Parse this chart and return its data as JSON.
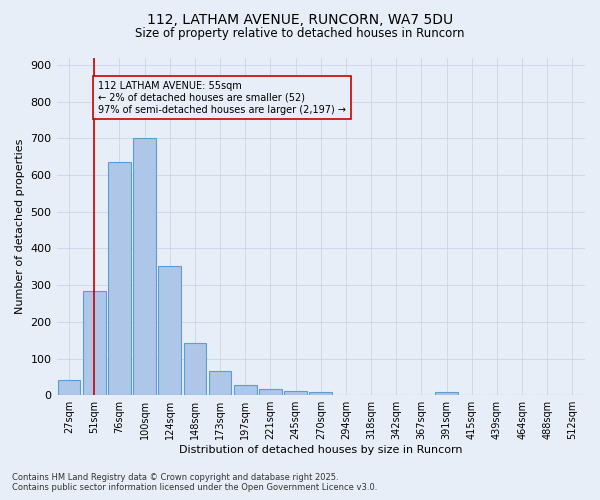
{
  "title": "112, LATHAM AVENUE, RUNCORN, WA7 5DU",
  "subtitle": "Size of property relative to detached houses in Runcorn",
  "xlabel": "Distribution of detached houses by size in Runcorn",
  "ylabel": "Number of detached properties",
  "footer_line1": "Contains HM Land Registry data © Crown copyright and database right 2025.",
  "footer_line2": "Contains public sector information licensed under the Open Government Licence v3.0.",
  "bar_labels": [
    "27sqm",
    "51sqm",
    "76sqm",
    "100sqm",
    "124sqm",
    "148sqm",
    "173sqm",
    "197sqm",
    "221sqm",
    "245sqm",
    "270sqm",
    "294sqm",
    "318sqm",
    "342sqm",
    "367sqm",
    "391sqm",
    "415sqm",
    "439sqm",
    "464sqm",
    "488sqm",
    "512sqm"
  ],
  "bar_values": [
    42,
    285,
    635,
    700,
    352,
    143,
    65,
    29,
    16,
    11,
    9,
    0,
    0,
    0,
    0,
    8,
    0,
    0,
    0,
    0,
    0
  ],
  "bar_color": "#aec6e8",
  "bar_edge_color": "#5a9fd4",
  "grid_color": "#c8d4e8",
  "bg_color": "#e8eef8",
  "vline_x": 1,
  "vline_color": "#cc0000",
  "annotation_text": "112 LATHAM AVENUE: 55sqm\n← 2% of detached houses are smaller (52)\n97% of semi-detached houses are larger (2,197) →",
  "annotation_box_color": "#cc0000",
  "ylim": [
    0,
    920
  ],
  "yticks": [
    0,
    100,
    200,
    300,
    400,
    500,
    600,
    700,
    800,
    900
  ]
}
